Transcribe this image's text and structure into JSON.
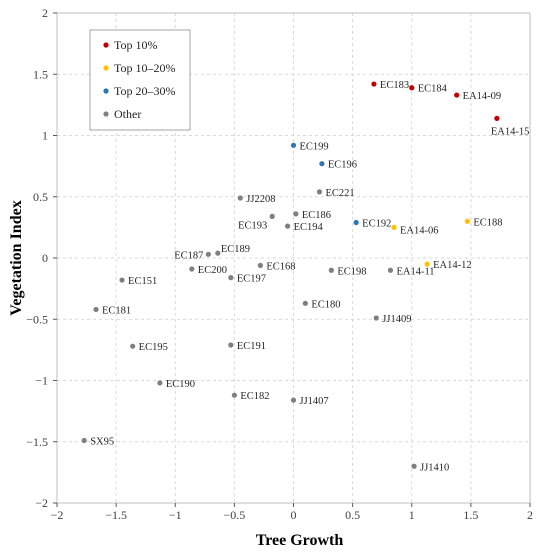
{
  "chart_data": {
    "type": "scatter",
    "title": "",
    "xlabel": "Tree Growth",
    "ylabel": "Vegetation Index",
    "xlim": [
      -2,
      2
    ],
    "ylim": [
      -2,
      2
    ],
    "x_ticks": [
      "−2",
      "−1.5",
      "−1",
      "−0.5",
      "0",
      "0.5",
      "1",
      "1.5",
      "2"
    ],
    "y_ticks": [
      "2",
      "1.5",
      "1",
      "0.5",
      "0",
      "−0.5",
      "−1",
      "−1.5",
      "−2"
    ],
    "grid": true,
    "legend_position": "top-left",
    "series": [
      {
        "name": "Top 10%",
        "color": "#c00000",
        "points": [
          {
            "label": "EC183",
            "x": 0.68,
            "y": 1.42
          },
          {
            "label": "EC184",
            "x": 1.0,
            "y": 1.39
          },
          {
            "label": "EA14-09",
            "x": 1.38,
            "y": 1.33
          },
          {
            "label": "EA14-15",
            "x": 1.72,
            "y": 1.14
          }
        ]
      },
      {
        "name": "Top 10–20%",
        "color": "#ffc000",
        "points": [
          {
            "label": "EA14-06",
            "x": 0.85,
            "y": 0.25
          },
          {
            "label": "EC188",
            "x": 1.47,
            "y": 0.3
          },
          {
            "label": "EA14-12",
            "x": 1.13,
            "y": -0.05
          }
        ]
      },
      {
        "name": "Top 20–30%",
        "color": "#2e75b6",
        "points": [
          {
            "label": "EC199",
            "x": 0.0,
            "y": 0.92
          },
          {
            "label": "EC196",
            "x": 0.24,
            "y": 0.77
          },
          {
            "label": "EC192",
            "x": 0.53,
            "y": 0.29
          }
        ]
      },
      {
        "name": "Other",
        "color": "#7f7f7f",
        "points": [
          {
            "label": "EC221",
            "x": 0.22,
            "y": 0.54
          },
          {
            "label": "JJ2208",
            "x": -0.45,
            "y": 0.49
          },
          {
            "label": "EC186",
            "x": 0.02,
            "y": 0.36
          },
          {
            "label": "EC193",
            "x": -0.18,
            "y": 0.34
          },
          {
            "label": "EC194",
            "x": -0.05,
            "y": 0.26
          },
          {
            "label": "EC189",
            "x": -0.64,
            "y": 0.04
          },
          {
            "label": "EC187",
            "x": -0.72,
            "y": 0.03
          },
          {
            "label": "EC200",
            "x": -0.86,
            "y": -0.09
          },
          {
            "label": "EC168",
            "x": -0.28,
            "y": -0.06
          },
          {
            "label": "EC197",
            "x": -0.53,
            "y": -0.16
          },
          {
            "label": "EC198",
            "x": 0.32,
            "y": -0.1
          },
          {
            "label": "EA14-11",
            "x": 0.82,
            "y": -0.1
          },
          {
            "label": "EC151",
            "x": -1.45,
            "y": -0.18
          },
          {
            "label": "EC180",
            "x": 0.1,
            "y": -0.37
          },
          {
            "label": "EC181",
            "x": -1.67,
            "y": -0.42
          },
          {
            "label": "JJ1409",
            "x": 0.7,
            "y": -0.49
          },
          {
            "label": "EC195",
            "x": -1.36,
            "y": -0.72
          },
          {
            "label": "EC191",
            "x": -0.53,
            "y": -0.71
          },
          {
            "label": "EC190",
            "x": -1.13,
            "y": -1.02
          },
          {
            "label": "EC182",
            "x": -0.5,
            "y": -1.12
          },
          {
            "label": "JJ1407",
            "x": 0.0,
            "y": -1.16
          },
          {
            "label": "SX95",
            "x": -1.77,
            "y": -1.49
          },
          {
            "label": "JJ1410",
            "x": 1.02,
            "y": -1.7
          }
        ]
      }
    ]
  }
}
